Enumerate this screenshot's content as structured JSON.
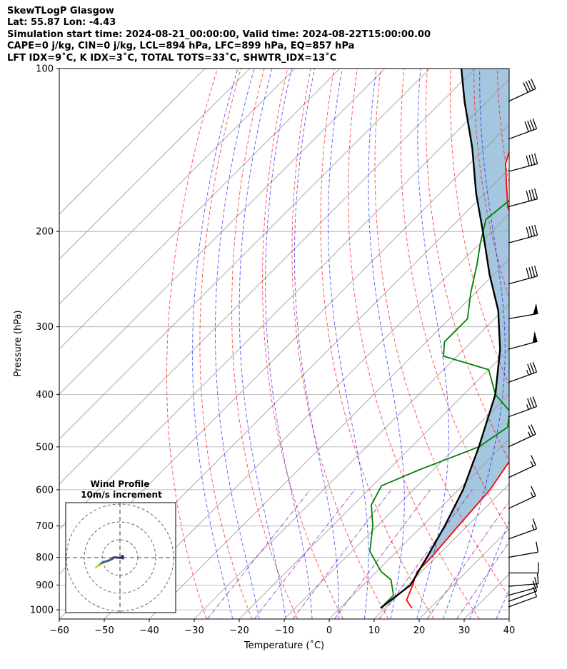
{
  "header": {
    "line1": "SkewTLogP Glasgow",
    "line2": "Lat: 55.87   Lon: -4.43",
    "line3": "Simulation start time: 2024-08-21_00:00:00, Valid time: 2024-08-22T15:00:00.00",
    "line4": "CAPE=0 j/kg, CIN=0 j/kg, LCL=894 hPa, LFC=899 hPa, EQ=857 hPa",
    "line5": "LFT IDX=9˚C, K IDX=3˚C, TOTAL TOTS=33˚C, SHWTR_IDX=13˚C"
  },
  "chart_data": {
    "type": "line",
    "xlabel": "Temperature (˚C)",
    "ylabel": "Pressure (hPa)",
    "xlim": [
      -60,
      40
    ],
    "ylim": [
      1040,
      100
    ],
    "y_scale": "log",
    "skew": true,
    "grid": true,
    "xticks": [
      -60,
      -50,
      -40,
      -30,
      -20,
      -10,
      0,
      10,
      20,
      30,
      40
    ],
    "yticks": [
      100,
      200,
      300,
      400,
      500,
      600,
      700,
      800,
      900,
      1000
    ],
    "series": [
      {
        "role": "temperature",
        "color": "#ff0000",
        "points": [
          [
            16,
            993
          ],
          [
            13,
            960
          ],
          [
            11,
            900
          ],
          [
            9,
            850
          ],
          [
            9,
            800
          ],
          [
            8,
            700
          ],
          [
            7,
            600
          ],
          [
            4,
            500
          ],
          [
            1,
            440
          ],
          [
            -2,
            400
          ],
          [
            -5,
            350
          ],
          [
            -10,
            330
          ],
          [
            -16,
            290
          ],
          [
            -22,
            270
          ],
          [
            -30,
            250
          ],
          [
            -36,
            220
          ],
          [
            -44,
            200
          ],
          [
            -52,
            180
          ],
          [
            -62,
            150
          ],
          [
            -70,
            120
          ],
          [
            -73,
            100
          ]
        ]
      },
      {
        "role": "dewpoint",
        "color": "#008000",
        "points": [
          [
            9,
            993
          ],
          [
            9,
            940
          ],
          [
            5,
            880
          ],
          [
            1,
            850
          ],
          [
            -6,
            780
          ],
          [
            -11,
            700
          ],
          [
            -16,
            640
          ],
          [
            -18,
            590
          ],
          [
            -13,
            550
          ],
          [
            -5,
            500
          ],
          [
            -3,
            460
          ],
          [
            -6,
            430
          ],
          [
            -13,
            400
          ],
          [
            -20,
            360
          ],
          [
            -33,
            340
          ],
          [
            -36,
            320
          ],
          [
            -36,
            290
          ],
          [
            -41,
            260
          ],
          [
            -46,
            230
          ],
          [
            -50,
            210
          ],
          [
            -54,
            190
          ],
          [
            -53,
            175
          ],
          [
            -56,
            150
          ],
          [
            -60,
            125
          ],
          [
            -63,
            100
          ]
        ]
      },
      {
        "role": "parcel",
        "color": "#000000",
        "points": [
          [
            9,
            993
          ],
          [
            10.5,
            900
          ],
          [
            8,
            800
          ],
          [
            5,
            700
          ],
          [
            1,
            600
          ],
          [
            -5,
            500
          ],
          [
            -13,
            400
          ],
          [
            -22,
            330
          ],
          [
            -31,
            280
          ],
          [
            -41,
            240
          ],
          [
            -52,
            200
          ],
          [
            -62,
            170
          ],
          [
            -73,
            140
          ],
          [
            -85,
            115
          ],
          [
            -93,
            100
          ]
        ]
      }
    ],
    "wind_barbs": [
      {
        "p": 988,
        "speed_kt": 10,
        "dir": 250
      },
      {
        "p": 965,
        "speed_kt": 10,
        "dir": 250
      },
      {
        "p": 940,
        "speed_kt": 10,
        "dir": 255
      },
      {
        "p": 905,
        "speed_kt": 10,
        "dir": 265
      },
      {
        "p": 855,
        "speed_kt": 10,
        "dir": 270
      },
      {
        "p": 800,
        "speed_kt": 10,
        "dir": 260
      },
      {
        "p": 740,
        "speed_kt": 15,
        "dir": 250
      },
      {
        "p": 650,
        "speed_kt": 15,
        "dir": 245
      },
      {
        "p": 570,
        "speed_kt": 15,
        "dir": 245
      },
      {
        "p": 500,
        "speed_kt": 25,
        "dir": 245
      },
      {
        "p": 440,
        "speed_kt": 35,
        "dir": 250
      },
      {
        "p": 380,
        "speed_kt": 35,
        "dir": 250
      },
      {
        "p": 330,
        "speed_kt": 50,
        "dir": 255
      },
      {
        "p": 290,
        "speed_kt": 50,
        "dir": 260
      },
      {
        "p": 250,
        "speed_kt": 40,
        "dir": 255
      },
      {
        "p": 210,
        "speed_kt": 40,
        "dir": 255
      },
      {
        "p": 180,
        "speed_kt": 40,
        "dir": 255
      },
      {
        "p": 155,
        "speed_kt": 40,
        "dir": 255
      },
      {
        "p": 135,
        "speed_kt": 40,
        "dir": 250
      },
      {
        "p": 115,
        "speed_kt": 40,
        "dir": 245
      }
    ],
    "hodograph": {
      "title_line1": "Wind Profile",
      "title_line2": "10m/s increment",
      "ring_step_ms": 10,
      "points": [
        [
          1.2,
          0.8
        ],
        [
          1.5,
          0.9
        ],
        [
          1.6,
          0.5
        ],
        [
          1.7,
          -0.1
        ],
        [
          1.6,
          -0.4
        ],
        [
          1.4,
          -0.2
        ],
        [
          1.1,
          -0.1
        ],
        [
          0.5,
          -0.1
        ],
        [
          -0.5,
          -0.1
        ],
        [
          -2,
          0.1
        ],
        [
          -3.5,
          0.1
        ],
        [
          -4,
          -0.2
        ],
        [
          -4,
          -0.5
        ],
        [
          -4.5,
          -0.7
        ],
        [
          -6,
          -1.5
        ],
        [
          -7.5,
          -2.0
        ],
        [
          -9,
          -2.5
        ],
        [
          -10.5,
          -3.2
        ],
        [
          -11.5,
          -4.0
        ],
        [
          -12.5,
          -4.8
        ],
        [
          -13.5,
          -5.5
        ]
      ]
    },
    "colors": {
      "cape_fill": "#a4c6df",
      "dry_adiabat": "#ff0000",
      "moist_adiabat": "#0000ff",
      "mixing_ratio": "#8000a0",
      "isotherm": "#999999",
      "isobar": "#aaaaaa"
    }
  }
}
